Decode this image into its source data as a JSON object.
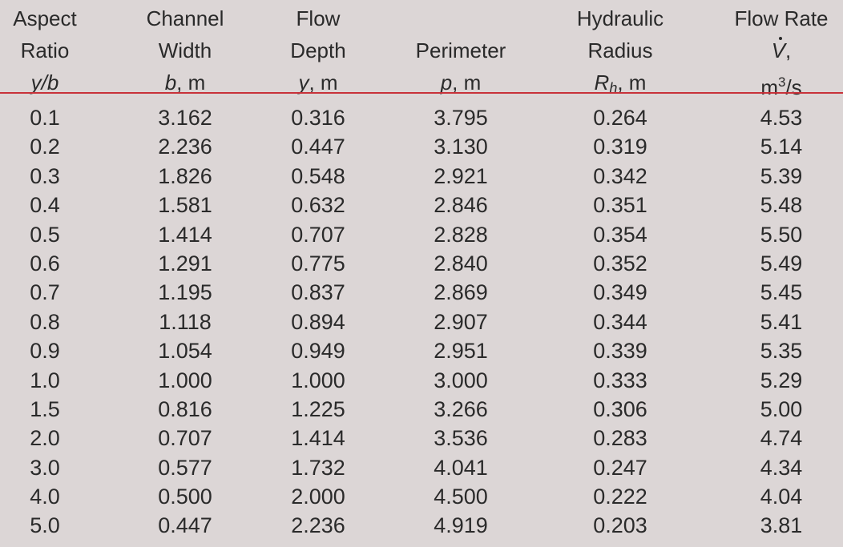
{
  "headers": [
    {
      "line1": "Aspect",
      "line2": "Ratio",
      "sym": "y/b",
      "unit": ""
    },
    {
      "line1": "Channel",
      "line2": "Width",
      "sym": "b",
      "unit": ", m"
    },
    {
      "line1": "Flow",
      "line2": "Depth",
      "sym": "y",
      "unit": ", m"
    },
    {
      "line1": "",
      "line2": "Perimeter",
      "sym": "p",
      "unit": ", m"
    },
    {
      "line1": "Hydraulic",
      "line2": "Radius",
      "sym": "R",
      "sub": "h",
      "unit": ", m"
    },
    {
      "line1": "Flow Rate",
      "line2_sym": "V",
      "line2_tail": ",",
      "unit_base": "m",
      "unit_sup": "3",
      "unit_tail": "/s"
    }
  ],
  "rule_color": "#c8323a",
  "rows": [
    [
      "0.1",
      "3.162",
      "0.316",
      "3.795",
      "0.264",
      "4.53"
    ],
    [
      "0.2",
      "2.236",
      "0.447",
      "3.130",
      "0.319",
      "5.14"
    ],
    [
      "0.3",
      "1.826",
      "0.548",
      "2.921",
      "0.342",
      "5.39"
    ],
    [
      "0.4",
      "1.581",
      "0.632",
      "2.846",
      "0.351",
      "5.48"
    ],
    [
      "0.5",
      "1.414",
      "0.707",
      "2.828",
      "0.354",
      "5.50"
    ],
    [
      "0.6",
      "1.291",
      "0.775",
      "2.840",
      "0.352",
      "5.49"
    ],
    [
      "0.7",
      "1.195",
      "0.837",
      "2.869",
      "0.349",
      "5.45"
    ],
    [
      "0.8",
      "1.118",
      "0.894",
      "2.907",
      "0.344",
      "5.41"
    ],
    [
      "0.9",
      "1.054",
      "0.949",
      "2.951",
      "0.339",
      "5.35"
    ],
    [
      "1.0",
      "1.000",
      "1.000",
      "3.000",
      "0.333",
      "5.29"
    ],
    [
      "1.5",
      "0.816",
      "1.225",
      "3.266",
      "0.306",
      "5.00"
    ],
    [
      "2.0",
      "0.707",
      "1.414",
      "3.536",
      "0.283",
      "4.74"
    ],
    [
      "3.0",
      "0.577",
      "1.732",
      "4.041",
      "0.247",
      "4.34"
    ],
    [
      "4.0",
      "0.500",
      "2.000",
      "4.500",
      "0.222",
      "4.04"
    ],
    [
      "5.0",
      "0.447",
      "2.236",
      "4.919",
      "0.203",
      "3.81"
    ]
  ]
}
